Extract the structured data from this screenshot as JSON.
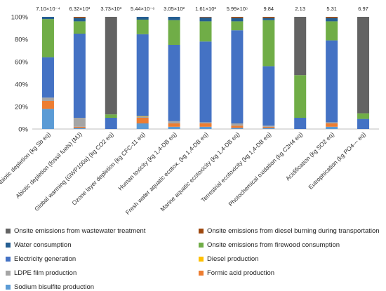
{
  "chart_data": {
    "type": "bar",
    "stacked": true,
    "normalized": true,
    "title": "",
    "xlabel": "",
    "ylabel": "",
    "ylim": [
      0,
      100
    ],
    "yticks": [
      "0%",
      "20%",
      "40%",
      "60%",
      "80%",
      "100%"
    ],
    "grid": false,
    "legend_position": "bottom",
    "categories": [
      "Abiotic depletion (kg Sb eq)",
      "Abiotic depletion (fossil fuels) (MJ)",
      "Global warming (GWP100a) (kg CO2 eq)",
      "Ozone layer depletion (kg CFC-11 eq)",
      "Human toxicity (kg 1,4-DB eq)",
      "Fresh water aquatic ecotox. (kg 1,4-DB eq)",
      "Marine aquatic ecotoxicity (kg 1,4-DB eq)",
      "Terrestrial ecotoxicity (kg 1,4-DB eq)",
      "Photochemical oxidation (kg C2H4 eq)",
      "Acidification (kg SO2 eq)",
      "Eutrophication (kg PO4--- eq)"
    ],
    "totals": [
      "7.10×10⁻⁴",
      "6.32×10³",
      "3.73×10³",
      "5.44×10⁻⁶",
      "3.05×10²",
      "1.61×10²",
      "5.99×10⁵",
      "9.84",
      "2.13",
      "5.31",
      "6.97"
    ],
    "series": [
      {
        "name": "Sodium bisulfite production",
        "color": "#5b9bd5",
        "values": [
          18,
          1,
          0,
          5,
          2,
          2,
          1,
          1,
          0,
          2,
          0
        ]
      },
      {
        "name": "Formic acid production",
        "color": "#ed7d31",
        "values": [
          7,
          1,
          0,
          5,
          3,
          3,
          2,
          1,
          0,
          3,
          0
        ]
      },
      {
        "name": "LDPE film production",
        "color": "#a5a5a5",
        "values": [
          3,
          8,
          0,
          1,
          2,
          1,
          2,
          1,
          0,
          1,
          0
        ]
      },
      {
        "name": "Diesel production",
        "color": "#ffc000",
        "values": [
          0,
          0,
          0,
          0.5,
          0,
          0,
          0,
          0,
          0,
          0,
          0
        ]
      },
      {
        "name": "Electricity generation",
        "color": "#4472c4",
        "values": [
          36,
          75,
          10,
          73,
          68,
          72,
          83,
          53,
          10,
          73,
          9
        ]
      },
      {
        "name": "Onsite emissions from firewood consumption",
        "color": "#70ad47",
        "values": [
          34,
          11,
          3,
          13,
          22,
          18,
          8,
          41,
          38,
          17,
          5
        ]
      },
      {
        "name": "Water consumption",
        "color": "#255e91",
        "values": [
          2,
          3,
          0,
          2.5,
          3,
          3.5,
          3,
          2,
          0,
          3,
          0
        ]
      },
      {
        "name": "Onsite emissions from diesel burning during transportation",
        "color": "#9e480e",
        "values": [
          0,
          1,
          0,
          0,
          0,
          0.5,
          1,
          1,
          0,
          1,
          0
        ]
      },
      {
        "name": "Onsite emissions from wastewater treatment",
        "color": "#636363",
        "values": [
          0,
          0,
          87,
          0,
          0,
          0,
          0,
          0,
          52,
          0,
          86
        ]
      }
    ],
    "legend_order": [
      "Onsite emissions from wastewater treatment",
      "Onsite emissions from diesel burning during transportation",
      "Water consumption",
      "Onsite emissions from firewood consumption",
      "Electricity generation",
      "Diesel production",
      "LDPE film production",
      "Formic acid production",
      "Sodium bisulfite production"
    ]
  }
}
